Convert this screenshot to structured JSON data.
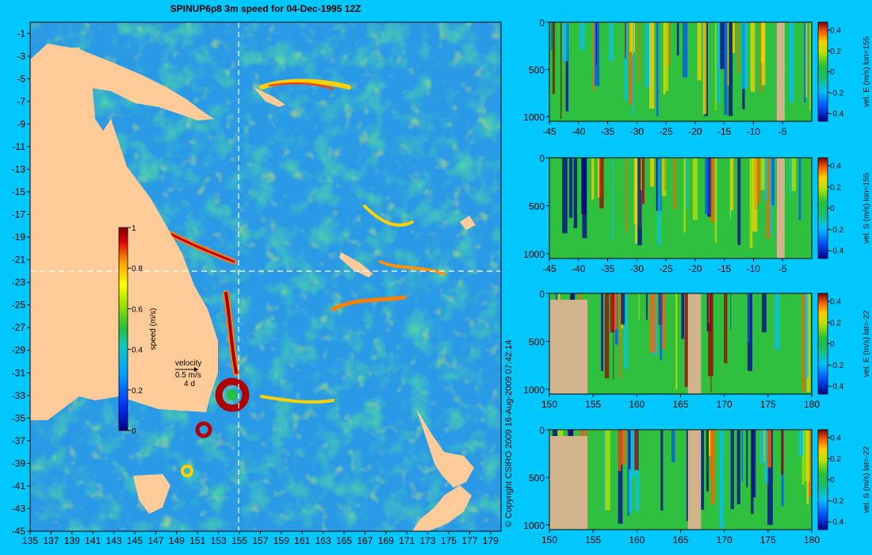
{
  "colors": {
    "background": "#00c8ff",
    "land": "#ffcc99",
    "section_land": "#d2b48c",
    "ocean": "#2a9ae6"
  },
  "chart_data": [
    {
      "type": "heatmap",
      "name": "map",
      "title": "SPINUP6p8 3m speed for 04-Dec-1995 12Z",
      "x_ticks": [
        135,
        137,
        139,
        141,
        143,
        145,
        147,
        149,
        151,
        153,
        155,
        157,
        159,
        161,
        163,
        165,
        167,
        169,
        171,
        173,
        175,
        177,
        179
      ],
      "y_ticks": [
        -1,
        -3,
        -5,
        -7,
        -9,
        -11,
        -13,
        -15,
        -17,
        -19,
        -21,
        -23,
        -25,
        -27,
        -29,
        -31,
        -33,
        -35,
        -37,
        -39,
        -41,
        -43,
        -45
      ],
      "xlim": [
        135,
        180
      ],
      "ylim": [
        -45,
        0
      ],
      "section_lon": 155,
      "section_lat": -22,
      "colorbar": {
        "label": "speed (m/s)",
        "ticks": [
          1,
          0.8,
          0.6,
          0.4,
          0.2,
          0
        ],
        "range": [
          0,
          1
        ]
      },
      "velocity_key": {
        "title": "velocity",
        "speed": "0.5 m/s",
        "duration": "4 d"
      },
      "copyright": "© Copyright CSIRO 2009   16-Aug-2009 07:42:14"
    },
    {
      "type": "heatmap",
      "name": "section-1",
      "x_ticks": [
        "-45",
        "-40",
        "-35",
        "-30",
        "-25",
        "-20",
        "-15",
        "-10",
        "-5"
      ],
      "y_ticks": [
        "0",
        "500",
        "1000"
      ],
      "xlim": [
        -45,
        0
      ],
      "ylim": [
        1050,
        0
      ],
      "colorbar_label": "vel. E (m/s) lon=155",
      "colorbar_ticks": [
        "0.4",
        "0.2",
        "0",
        "-0.2",
        "-0.4"
      ]
    },
    {
      "type": "heatmap",
      "name": "section-2",
      "x_ticks": [
        "-45",
        "-40",
        "-35",
        "-30",
        "-25",
        "-20",
        "-15",
        "-10",
        "-5"
      ],
      "y_ticks": [
        "0",
        "500",
        "1000"
      ],
      "xlim": [
        -45,
        0
      ],
      "ylim": [
        1050,
        0
      ],
      "colorbar_label": "vel. S (m/s) lon=155",
      "colorbar_ticks": [
        "0.4",
        "0.2",
        "0",
        "-0.2",
        "-0.4"
      ]
    },
    {
      "type": "heatmap",
      "name": "section-3",
      "x_ticks": [
        "150",
        "155",
        "160",
        "165",
        "170",
        "175",
        "180"
      ],
      "y_ticks": [
        "0",
        "500",
        "1000"
      ],
      "xlim": [
        150,
        180
      ],
      "ylim": [
        1050,
        0
      ],
      "colorbar_label": "vel. E (m/s) lat=-22",
      "colorbar_ticks": [
        "0.4",
        "0.2",
        "0",
        "-0.2",
        "-0.4"
      ]
    },
    {
      "type": "heatmap",
      "name": "section-4",
      "x_ticks": [
        "150",
        "155",
        "160",
        "165",
        "170",
        "175",
        "180"
      ],
      "y_ticks": [
        "0",
        "500",
        "1000"
      ],
      "xlim": [
        150,
        180
      ],
      "ylim": [
        1050,
        0
      ],
      "colorbar_label": "vel. S (m/s) lat=-22",
      "colorbar_ticks": [
        "0.4",
        "0.2",
        "0",
        "-0.2",
        "-0.4"
      ]
    }
  ]
}
